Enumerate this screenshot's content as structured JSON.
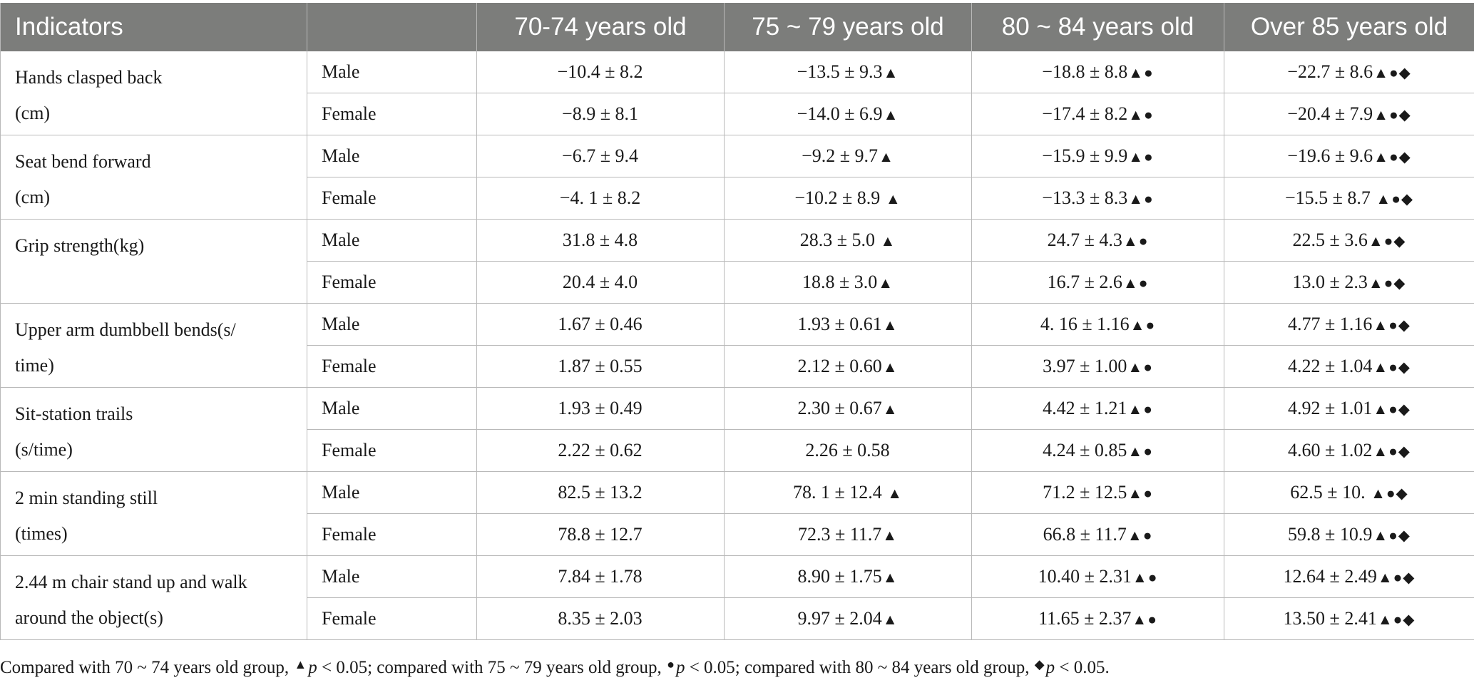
{
  "header": {
    "indicators": "Indicators",
    "sex": "",
    "g1": "70-74 years old",
    "g2": "75 ~ 79 years old",
    "g3": "80 ~ 84 years old",
    "g4": "Over 85 years old"
  },
  "markers": {
    "vs_70_74": "▲",
    "vs_75_79": "●",
    "vs_80_84": "◆"
  },
  "rows": [
    {
      "indicator_line1": "Hands clasped back",
      "indicator_line2": "(cm)",
      "male": {
        "sex": "Male",
        "g1": "−10.4 ± 8.2",
        "g1_mk": "",
        "g2": "−13.5 ± 9.3",
        "g2_mk": "▲",
        "g3": "−18.8 ± 8.8",
        "g3_mk": "▲●",
        "g4": "−22.7 ± 8.6",
        "g4_mk": "▲●◆"
      },
      "female": {
        "sex": "Female",
        "g1": "−8.9 ± 8.1",
        "g1_mk": "",
        "g2": "−14.0 ± 6.9",
        "g2_mk": "▲",
        "g3": "−17.4 ± 8.2",
        "g3_mk": "▲●",
        "g4": "−20.4 ± 7.9",
        "g4_mk": "▲●◆"
      }
    },
    {
      "indicator_line1": "Seat bend forward",
      "indicator_line2": "(cm)",
      "male": {
        "sex": "Male",
        "g1": "−6.7 ± 9.4",
        "g1_mk": "",
        "g2": "−9.2 ± 9.7",
        "g2_mk": "▲",
        "g3": "−15.9 ± 9.9",
        "g3_mk": "▲●",
        "g4": "−19.6 ± 9.6",
        "g4_mk": "▲●◆"
      },
      "female": {
        "sex": "Female",
        "g1": "−4. 1 ± 8.2",
        "g1_mk": "",
        "g2": "−10.2 ± 8.9 ",
        "g2_mk": "▲",
        "g3": "−13.3 ± 8.3",
        "g3_mk": "▲●",
        "g4": "−15.5 ± 8.7 ",
        "g4_mk": "▲●◆"
      }
    },
    {
      "indicator_line1": "Grip strength(kg)",
      "indicator_line2": "",
      "male": {
        "sex": "Male",
        "g1": "31.8 ± 4.8",
        "g1_mk": "",
        "g2": "28.3 ± 5.0 ",
        "g2_mk": "▲",
        "g3": "24.7 ± 4.3",
        "g3_mk": "▲●",
        "g4": "22.5 ± 3.6",
        "g4_mk": "▲●◆"
      },
      "female": {
        "sex": "Female",
        "g1": "20.4 ± 4.0",
        "g1_mk": "",
        "g2": "18.8 ± 3.0",
        "g2_mk": "▲",
        "g3": "16.7 ± 2.6",
        "g3_mk": "▲●",
        "g4": "13.0 ± 2.3",
        "g4_mk": "▲●◆"
      }
    },
    {
      "indicator_line1": "Upper arm dumbbell bends(s/",
      "indicator_line2": "time)",
      "male": {
        "sex": "Male",
        "g1": "1.67 ± 0.46",
        "g1_mk": "",
        "g2": "1.93 ± 0.61",
        "g2_mk": "▲",
        "g3": "4. 16 ± 1.16",
        "g3_mk": "▲●",
        "g4": "4.77 ± 1.16",
        "g4_mk": "▲●◆"
      },
      "female": {
        "sex": "Female",
        "g1": "1.87 ± 0.55",
        "g1_mk": "",
        "g2": "2.12 ± 0.60",
        "g2_mk": "▲",
        "g3": "3.97 ± 1.00",
        "g3_mk": "▲●",
        "g4": "4.22 ± 1.04",
        "g4_mk": "▲●◆"
      }
    },
    {
      "indicator_line1": "Sit-station trails",
      "indicator_line2": "(s/time)",
      "male": {
        "sex": "Male",
        "g1": "1.93 ± 0.49",
        "g1_mk": "",
        "g2": "2.30 ± 0.67",
        "g2_mk": "▲",
        "g3": "4.42 ± 1.21",
        "g3_mk": "▲●",
        "g4": "4.92 ± 1.01",
        "g4_mk": "▲●◆"
      },
      "female": {
        "sex": "Female",
        "g1": "2.22 ± 0.62",
        "g1_mk": "",
        "g2": "2.26 ± 0.58",
        "g2_mk": "",
        "g3": "4.24 ± 0.85",
        "g3_mk": "▲●",
        "g4": "4.60 ± 1.02",
        "g4_mk": "▲●◆"
      }
    },
    {
      "indicator_line1": "2 min standing still",
      "indicator_line2": "(times)",
      "male": {
        "sex": "Male",
        "g1": "82.5 ± 13.2",
        "g1_mk": "",
        "g2": "78. 1 ± 12.4 ",
        "g2_mk": "▲",
        "g3": "71.2 ± 12.5",
        "g3_mk": "▲●",
        "g4": "62.5 ± 10. ",
        "g4_mk": "▲●◆"
      },
      "female": {
        "sex": "Female",
        "g1": "78.8 ± 12.7",
        "g1_mk": "",
        "g2": "72.3 ± 11.7",
        "g2_mk": "▲",
        "g3": "66.8 ± 11.7",
        "g3_mk": "▲●",
        "g4": "59.8 ± 10.9",
        "g4_mk": "▲●◆"
      }
    },
    {
      "indicator_line1": "2.44 m chair stand up and walk",
      "indicator_line2": "around the object(s)",
      "male": {
        "sex": "Male",
        "g1": "7.84 ± 1.78",
        "g1_mk": "",
        "g2": "8.90 ± 1.75",
        "g2_mk": "▲",
        "g3": "10.40 ± 2.31",
        "g3_mk": "▲●",
        "g4": "12.64 ± 2.49",
        "g4_mk": "▲●◆"
      },
      "female": {
        "sex": "Female",
        "g1": "8.35 ± 2.03",
        "g1_mk": "",
        "g2": "9.97 ± 2.04",
        "g2_mk": "▲",
        "g3": "11.65 ± 2.37",
        "g3_mk": "▲●",
        "g4": "13.50 ± 2.41",
        "g4_mk": "▲●◆"
      }
    }
  ],
  "footnote": {
    "t1": "Compared with 70 ~ 74 years old group, ",
    "m1": "▲",
    "p1": "p",
    "t2": " < 0.05; compared with 75 ~ 79 years old group, ",
    "m2": "●",
    "p2": "p",
    "t3": " < 0.05; compared with 80 ~ 84 years old group, ",
    "m3": "◆",
    "p3": "p",
    "t4": " < 0.05."
  }
}
